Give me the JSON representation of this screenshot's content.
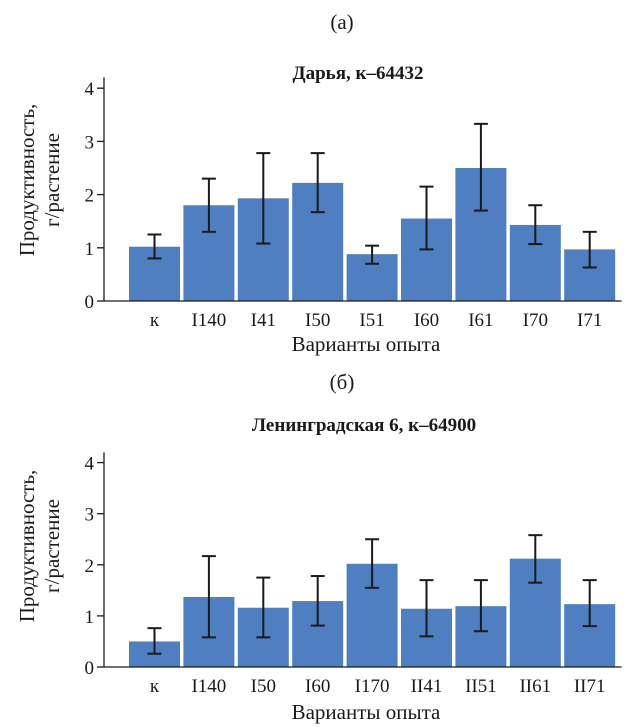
{
  "colors": {
    "bar": "#4f7fc0",
    "text": "#1a1a1a"
  },
  "chart_data": [
    {
      "type": "bar",
      "panel": "(a)",
      "title": "Дарья, к–64432",
      "xlabel": "Варианты опыта",
      "ylabel": [
        "Продуктивность,",
        "г/растение"
      ],
      "ylim": [
        0,
        4.2
      ],
      "yticks": [
        0,
        1,
        2,
        3,
        4
      ],
      "categories": [
        "к",
        "I140",
        "I41",
        "I50",
        "I51",
        "I60",
        "I61",
        "I70",
        "I71"
      ],
      "values": [
        1.02,
        1.8,
        1.93,
        2.22,
        0.88,
        1.55,
        2.5,
        1.43,
        0.97
      ],
      "error_low": [
        0.8,
        1.3,
        1.08,
        1.67,
        0.7,
        0.97,
        1.7,
        1.07,
        0.63
      ],
      "error_high": [
        1.25,
        2.3,
        2.78,
        2.78,
        1.04,
        2.15,
        3.33,
        1.8,
        1.3
      ],
      "grid": false
    },
    {
      "type": "bar",
      "panel": "(б)",
      "title": "Ленинградская 6, к–64900",
      "xlabel": "Варианты опыта",
      "ylabel": [
        "Продуктивность,",
        "г/растение"
      ],
      "ylim": [
        0,
        4.2
      ],
      "yticks": [
        0,
        1,
        2,
        3,
        4
      ],
      "categories": [
        "к",
        "I140",
        "I50",
        "I60",
        "I170",
        "II41",
        "II51",
        "II61",
        "II71"
      ],
      "values": [
        0.5,
        1.37,
        1.16,
        1.29,
        2.02,
        1.14,
        1.19,
        2.12,
        1.23
      ],
      "error_low": [
        0.26,
        0.58,
        0.58,
        0.81,
        1.55,
        0.6,
        0.7,
        1.65,
        0.8
      ],
      "error_high": [
        0.76,
        2.17,
        1.75,
        1.78,
        2.5,
        1.7,
        1.7,
        2.58,
        1.7
      ],
      "grid": false
    }
  ]
}
